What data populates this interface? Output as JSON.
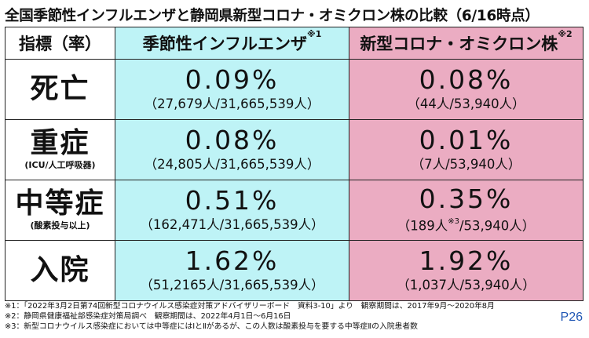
{
  "title": "全国季節性インフルエンザと静岡県新型コロナ・オミクロン株の比較（6/16時点）",
  "header": {
    "index_label": "指標（率）",
    "flu_label": "季節性インフルエンザ",
    "flu_mark": "※1",
    "covid_label": "新型コロナ・オミクロン株",
    "covid_mark": "※2"
  },
  "rows": [
    {
      "label": "死亡",
      "sublabel": "",
      "flu_pct": "0.09%",
      "flu_count": "（27,679人/31,665,539人）",
      "covid_pct": "0.08%",
      "covid_count": "（44人/53,940人）"
    },
    {
      "label": "重症",
      "sublabel": "(ICU/人工呼吸器)",
      "flu_pct": "0.08%",
      "flu_count": "（24,805人/31,665,539人）",
      "covid_pct": "0.01%",
      "covid_count": "（7人/53,940人）"
    },
    {
      "label": "中等症",
      "sublabel": "(酸素投与以上)",
      "flu_pct": "0.51%",
      "flu_count": "（162,471人/31,665,539人）",
      "covid_pct": "0.35%",
      "covid_count_pre": "（189人",
      "covid_count_mark": "※3",
      "covid_count_post": "/53,940人）"
    },
    {
      "label": "入院",
      "sublabel": "",
      "flu_pct": "1.62%",
      "flu_count": "（51,2165人/31,665,539人）",
      "covid_pct": "1.92%",
      "covid_count": "（1,037人/53,940人）"
    }
  ],
  "notes": [
    "※1：「2022年3月2日第74回新型コロナウイルス感染症対策アドバイザリーボード　資料3-10」より　観察期間は、2017年9月～2020年8月",
    "※2：静岡県健康福祉部感染症対策局調べ　観察期間は、2022年4月1日～6月16日",
    "※3：新型コロナウイルス感染症においては中等症にはⅠとⅡがあるが、この人数は酸素投与を要する中等症Ⅱの入院患者数"
  ],
  "page_number": "P26",
  "colors": {
    "flu_bg": "#bef3f6",
    "covid_bg": "#ebacc2",
    "page_number": "#1f56b4"
  }
}
